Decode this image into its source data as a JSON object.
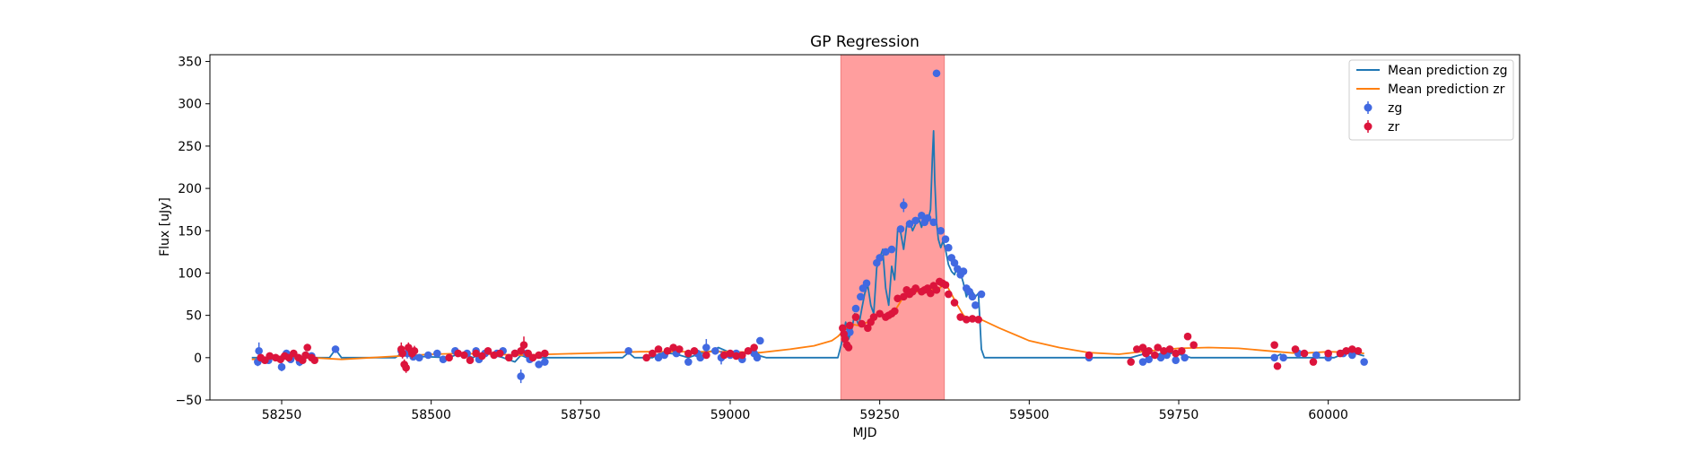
{
  "chart_data": {
    "type": "scatter",
    "title": "GP Regression",
    "xlabel": "MJD",
    "ylabel": "Flux [uJy]",
    "xlim": [
      58130,
      60320
    ],
    "ylim": [
      -50,
      358
    ],
    "xticks": [
      58250,
      58500,
      58750,
      59000,
      59250,
      59500,
      59750,
      60000
    ],
    "yticks": [
      -50,
      0,
      50,
      100,
      150,
      200,
      250,
      300,
      350
    ],
    "legend_position": "top-right",
    "shaded_region": {
      "x_start": 59185,
      "x_end": 59358,
      "color": "#ff9e9e"
    },
    "colors": {
      "zg_line": "#1f77b4",
      "zr_line": "#ff7f0e",
      "zg_points": "#4169e1",
      "zr_points": "#dc143c"
    },
    "legend": [
      "Mean prediction zg",
      "Mean prediction zr",
      "zg",
      "zr"
    ],
    "series": [
      {
        "name": "Mean prediction zg",
        "kind": "line",
        "x": [
          58200,
          58330,
          58335,
          58340,
          58345,
          58350,
          58440,
          58450,
          58460,
          58530,
          58540,
          58550,
          58560,
          58570,
          58580,
          58590,
          58600,
          58620,
          58640,
          58650,
          58660,
          58680,
          58820,
          58830,
          58840,
          58870,
          58880,
          58890,
          58910,
          58930,
          58950,
          58970,
          58980,
          59000,
          59020,
          59040,
          59050,
          59060,
          59180,
          59188,
          59193,
          59198,
          59203,
          59208,
          59215,
          59220,
          59225,
          59230,
          59235,
          59240,
          59245,
          59250,
          59255,
          59260,
          59265,
          59270,
          59275,
          59280,
          59285,
          59290,
          59295,
          59300,
          59305,
          59310,
          59315,
          59320,
          59325,
          59330,
          59335,
          59338,
          59340,
          59342,
          59345,
          59348,
          59352,
          59356,
          59360,
          59365,
          59370,
          59375,
          59380,
          59385,
          59390,
          59395,
          59400,
          59405,
          59410,
          59415,
          59420,
          59425,
          59430,
          59440,
          59600,
          59670,
          59680,
          59690,
          59700,
          59710,
          59720,
          59730,
          59740,
          59750,
          59760,
          59770,
          59780,
          59910,
          59920,
          59930,
          59950,
          59970,
          59990,
          60010,
          60020,
          60030,
          60040,
          60050,
          60060
        ],
        "y": [
          0,
          0,
          5,
          10,
          5,
          0,
          0,
          5,
          2,
          0,
          3,
          5,
          3,
          0,
          4,
          6,
          4,
          0,
          -5,
          3,
          0,
          0,
          0,
          6,
          0,
          0,
          4,
          6,
          4,
          0,
          5,
          8,
          12,
          6,
          3,
          10,
          2,
          0,
          0,
          22,
          42,
          22,
          32,
          52,
          38,
          58,
          76,
          86,
          62,
          52,
          106,
          118,
          128,
          82,
          62,
          108,
          92,
          152,
          148,
          128,
          156,
          162,
          150,
          158,
          165,
          154,
          168,
          160,
          175,
          235,
          268,
          210,
          160,
          140,
          130,
          138,
          128,
          110,
          102,
          98,
          108,
          100,
          88,
          72,
          82,
          78,
          72,
          76,
          10,
          0,
          0,
          0,
          0,
          0,
          2,
          4,
          0,
          3,
          5,
          3,
          6,
          4,
          2,
          0,
          0,
          0,
          4,
          0,
          0,
          0,
          0,
          0,
          3,
          5,
          6,
          4,
          2
        ]
      },
      {
        "name": "Mean prediction zr",
        "kind": "line",
        "x": [
          58200,
          58250,
          58300,
          58350,
          58400,
          58450,
          58500,
          58550,
          58600,
          58650,
          58700,
          58750,
          58800,
          58850,
          58900,
          58950,
          59000,
          59050,
          59100,
          59140,
          59170,
          59180,
          59190,
          59200,
          59215,
          59230,
          59245,
          59260,
          59275,
          59290,
          59300,
          59310,
          59320,
          59330,
          59340,
          59350,
          59360,
          59370,
          59380,
          59390,
          59400,
          59410,
          59420,
          59450,
          59500,
          59550,
          59600,
          59650,
          59700,
          59750,
          59800,
          59850,
          59900,
          59950,
          60000,
          60050,
          60060
        ],
        "y": [
          -2,
          -1,
          0,
          -2,
          0,
          2,
          4,
          5,
          4,
          3,
          4,
          5,
          6,
          7,
          7,
          7,
          7,
          6,
          10,
          14,
          20,
          25,
          32,
          40,
          38,
          42,
          50,
          48,
          55,
          72,
          75,
          78,
          78,
          80,
          80,
          82,
          88,
          75,
          62,
          50,
          46,
          47,
          45,
          35,
          20,
          12,
          6,
          4,
          8,
          11,
          12,
          11,
          8,
          5,
          7,
          6,
          5
        ]
      },
      {
        "name": "zg",
        "kind": "errorbar_points",
        "x": [
          58210,
          58212,
          58228,
          58250,
          58258,
          58265,
          58280,
          58290,
          58300,
          58340,
          58450,
          58460,
          58470,
          58480,
          58495,
          58510,
          58520,
          58540,
          58560,
          58575,
          58580,
          58590,
          58610,
          58620,
          58640,
          58650,
          58660,
          58665,
          58680,
          58690,
          58830,
          58880,
          58890,
          58910,
          58930,
          58945,
          58950,
          58960,
          58975,
          58985,
          59000,
          59010,
          59020,
          59040,
          59045,
          59050,
          59200,
          59210,
          59218,
          59222,
          59228,
          59245,
          59250,
          59260,
          59270,
          59285,
          59290,
          59300,
          59310,
          59320,
          59325,
          59330,
          59340,
          59345,
          59352,
          59360,
          59365,
          59370,
          59375,
          59380,
          59385,
          59390,
          59395,
          59400,
          59405,
          59410,
          59420,
          59600,
          59690,
          59700,
          59720,
          59730,
          59745,
          59760,
          59910,
          59925,
          59950,
          59980,
          60000,
          60025,
          60040,
          60060
        ],
        "y": [
          -5,
          8,
          -3,
          -11,
          5,
          -2,
          -5,
          3,
          2,
          10,
          8,
          5,
          1,
          0,
          3,
          5,
          -2,
          8,
          5,
          8,
          -2,
          5,
          5,
          8,
          5,
          -22,
          5,
          -2,
          -8,
          -5,
          8,
          0,
          3,
          5,
          -5,
          5,
          0,
          12,
          8,
          0,
          3,
          5,
          -2,
          5,
          0,
          20,
          30,
          58,
          72,
          82,
          88,
          112,
          118,
          125,
          128,
          152,
          180,
          158,
          162,
          168,
          160,
          165,
          160,
          336,
          150,
          140,
          130,
          118,
          112,
          105,
          98,
          102,
          82,
          78,
          72,
          62,
          75,
          0,
          -5,
          -2,
          0,
          3,
          -3,
          0,
          0,
          0,
          5,
          3,
          0,
          5,
          3,
          -5
        ],
        "yerr": [
          5,
          10,
          4,
          5,
          4,
          4,
          5,
          4,
          4,
          4,
          6,
          6,
          4,
          4,
          4,
          4,
          4,
          4,
          4,
          4,
          4,
          4,
          4,
          4,
          4,
          8,
          4,
          4,
          4,
          4,
          4,
          4,
          4,
          4,
          4,
          4,
          4,
          10,
          4,
          8,
          4,
          4,
          4,
          4,
          4,
          4,
          4,
          4,
          4,
          4,
          4,
          4,
          4,
          4,
          4,
          4,
          8,
          4,
          4,
          4,
          4,
          4,
          4,
          4,
          4,
          4,
          4,
          4,
          4,
          4,
          4,
          4,
          4,
          4,
          4,
          4,
          4,
          4,
          4,
          4,
          4,
          4,
          4,
          4,
          4,
          4,
          4,
          4,
          4,
          4,
          4,
          4
        ]
      },
      {
        "name": "zr",
        "kind": "errorbar_points",
        "x": [
          58215,
          58222,
          58230,
          58240,
          58248,
          58255,
          58262,
          58270,
          58278,
          58285,
          58290,
          58293,
          58300,
          58305,
          58450,
          58452,
          58455,
          58458,
          58462,
          58468,
          58472,
          58530,
          58545,
          58555,
          58565,
          58575,
          58585,
          58595,
          58605,
          58615,
          58630,
          58640,
          58650,
          58655,
          58662,
          58670,
          58680,
          58690,
          58860,
          58870,
          58880,
          58895,
          58905,
          58915,
          58930,
          58940,
          58960,
          58990,
          59000,
          59010,
          59020,
          59030,
          59040,
          59188,
          59190,
          59192,
          59195,
          59198,
          59200,
          59210,
          59220,
          59230,
          59235,
          59240,
          59250,
          59260,
          59265,
          59270,
          59275,
          59280,
          59290,
          59295,
          59300,
          59305,
          59310,
          59320,
          59325,
          59330,
          59335,
          59340,
          59345,
          59350,
          59355,
          59360,
          59365,
          59375,
          59385,
          59395,
          59405,
          59415,
          59600,
          59670,
          59680,
          59690,
          59695,
          59700,
          59710,
          59715,
          59725,
          59735,
          59745,
          59755,
          59765,
          59775,
          59910,
          59915,
          59945,
          59960,
          59975,
          60000,
          60020,
          60030,
          60040,
          60050
        ],
        "y": [
          0,
          -3,
          2,
          0,
          -2,
          2,
          0,
          5,
          0,
          -3,
          3,
          12,
          0,
          -3,
          10,
          5,
          -8,
          -12,
          12,
          5,
          8,
          0,
          5,
          3,
          -3,
          5,
          2,
          8,
          3,
          5,
          0,
          5,
          8,
          15,
          5,
          0,
          3,
          5,
          0,
          5,
          10,
          8,
          12,
          10,
          5,
          8,
          3,
          3,
          5,
          2,
          3,
          8,
          12,
          35,
          28,
          22,
          15,
          12,
          38,
          48,
          40,
          35,
          42,
          48,
          52,
          48,
          50,
          52,
          55,
          70,
          72,
          80,
          75,
          78,
          82,
          78,
          80,
          82,
          76,
          85,
          80,
          90,
          88,
          86,
          75,
          65,
          48,
          45,
          46,
          45,
          3,
          -5,
          10,
          12,
          5,
          8,
          3,
          12,
          8,
          10,
          5,
          8,
          25,
          15,
          15,
          -10,
          10,
          5,
          -5,
          5,
          5,
          8,
          10,
          8
        ],
        "yerr": [
          4,
          4,
          4,
          4,
          4,
          4,
          4,
          4,
          4,
          4,
          4,
          4,
          4,
          4,
          8,
          6,
          6,
          6,
          6,
          6,
          6,
          4,
          4,
          4,
          4,
          4,
          4,
          4,
          4,
          4,
          4,
          4,
          4,
          10,
          4,
          4,
          4,
          4,
          4,
          4,
          4,
          4,
          4,
          4,
          4,
          4,
          4,
          4,
          4,
          4,
          4,
          4,
          4,
          4,
          4,
          4,
          4,
          4,
          4,
          4,
          4,
          4,
          4,
          4,
          4,
          4,
          4,
          4,
          4,
          4,
          4,
          4,
          4,
          4,
          4,
          4,
          4,
          4,
          4,
          4,
          4,
          4,
          4,
          4,
          4,
          4,
          4,
          4,
          4,
          4,
          4,
          4,
          4,
          4,
          4,
          4,
          4,
          4,
          4,
          4,
          4,
          4,
          4,
          4,
          4,
          4,
          4,
          4,
          4,
          4,
          4,
          4,
          4,
          4
        ]
      }
    ]
  }
}
